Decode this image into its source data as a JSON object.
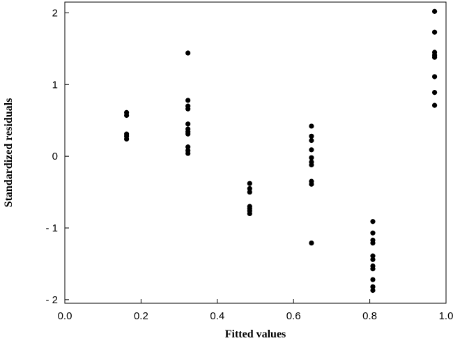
{
  "chart_data": {
    "type": "scatter",
    "title": "",
    "xlabel": "Fitted values",
    "ylabel": "Standardized residuals",
    "xlim": [
      0.0,
      1.0
    ],
    "ylim": [
      -2.05,
      2.15
    ],
    "x_ticks": [
      0.0,
      0.2,
      0.4,
      0.6,
      0.8,
      1.0
    ],
    "x_tick_labels": [
      "0.0",
      "0.2",
      "0.4",
      "0.6",
      "0.8",
      "1.0"
    ],
    "y_ticks": [
      -2,
      -1,
      0,
      1,
      2
    ],
    "y_tick_labels": [
      "- 2",
      "- 1",
      "0",
      "1",
      "2"
    ],
    "grid": false,
    "marker_color": "#000000",
    "series": [
      {
        "points": [
          {
            "x": 0.162,
            "y": 0.61
          },
          {
            "x": 0.162,
            "y": 0.57
          },
          {
            "x": 0.162,
            "y": 0.31
          },
          {
            "x": 0.162,
            "y": 0.28
          },
          {
            "x": 0.162,
            "y": 0.24
          },
          {
            "x": 0.323,
            "y": 1.44
          },
          {
            "x": 0.323,
            "y": 0.78
          },
          {
            "x": 0.323,
            "y": 0.7
          },
          {
            "x": 0.323,
            "y": 0.66
          },
          {
            "x": 0.323,
            "y": 0.45
          },
          {
            "x": 0.323,
            "y": 0.38
          },
          {
            "x": 0.323,
            "y": 0.34
          },
          {
            "x": 0.323,
            "y": 0.31
          },
          {
            "x": 0.323,
            "y": 0.13
          },
          {
            "x": 0.323,
            "y": 0.08
          },
          {
            "x": 0.323,
            "y": 0.04
          },
          {
            "x": 0.485,
            "y": -0.38
          },
          {
            "x": 0.485,
            "y": -0.45
          },
          {
            "x": 0.485,
            "y": -0.5
          },
          {
            "x": 0.485,
            "y": -0.7
          },
          {
            "x": 0.485,
            "y": -0.73
          },
          {
            "x": 0.485,
            "y": -0.76
          },
          {
            "x": 0.485,
            "y": -0.8
          },
          {
            "x": 0.647,
            "y": 0.42
          },
          {
            "x": 0.647,
            "y": 0.28
          },
          {
            "x": 0.647,
            "y": 0.22
          },
          {
            "x": 0.647,
            "y": 0.09
          },
          {
            "x": 0.647,
            "y": -0.02
          },
          {
            "x": 0.647,
            "y": -0.08
          },
          {
            "x": 0.647,
            "y": -0.12
          },
          {
            "x": 0.647,
            "y": -0.35
          },
          {
            "x": 0.647,
            "y": -0.39
          },
          {
            "x": 0.647,
            "y": -1.21
          },
          {
            "x": 0.808,
            "y": -0.91
          },
          {
            "x": 0.808,
            "y": -1.07
          },
          {
            "x": 0.808,
            "y": -1.17
          },
          {
            "x": 0.808,
            "y": -1.21
          },
          {
            "x": 0.808,
            "y": -1.39
          },
          {
            "x": 0.808,
            "y": -1.44
          },
          {
            "x": 0.808,
            "y": -1.53
          },
          {
            "x": 0.808,
            "y": -1.57
          },
          {
            "x": 0.808,
            "y": -1.72
          },
          {
            "x": 0.808,
            "y": -1.82
          },
          {
            "x": 0.808,
            "y": -1.87
          },
          {
            "x": 0.97,
            "y": 2.02
          },
          {
            "x": 0.97,
            "y": 1.73
          },
          {
            "x": 0.97,
            "y": 1.45
          },
          {
            "x": 0.97,
            "y": 1.41
          },
          {
            "x": 0.97,
            "y": 1.38
          },
          {
            "x": 0.97,
            "y": 1.11
          },
          {
            "x": 0.97,
            "y": 0.89
          },
          {
            "x": 0.97,
            "y": 0.71
          }
        ]
      }
    ]
  }
}
